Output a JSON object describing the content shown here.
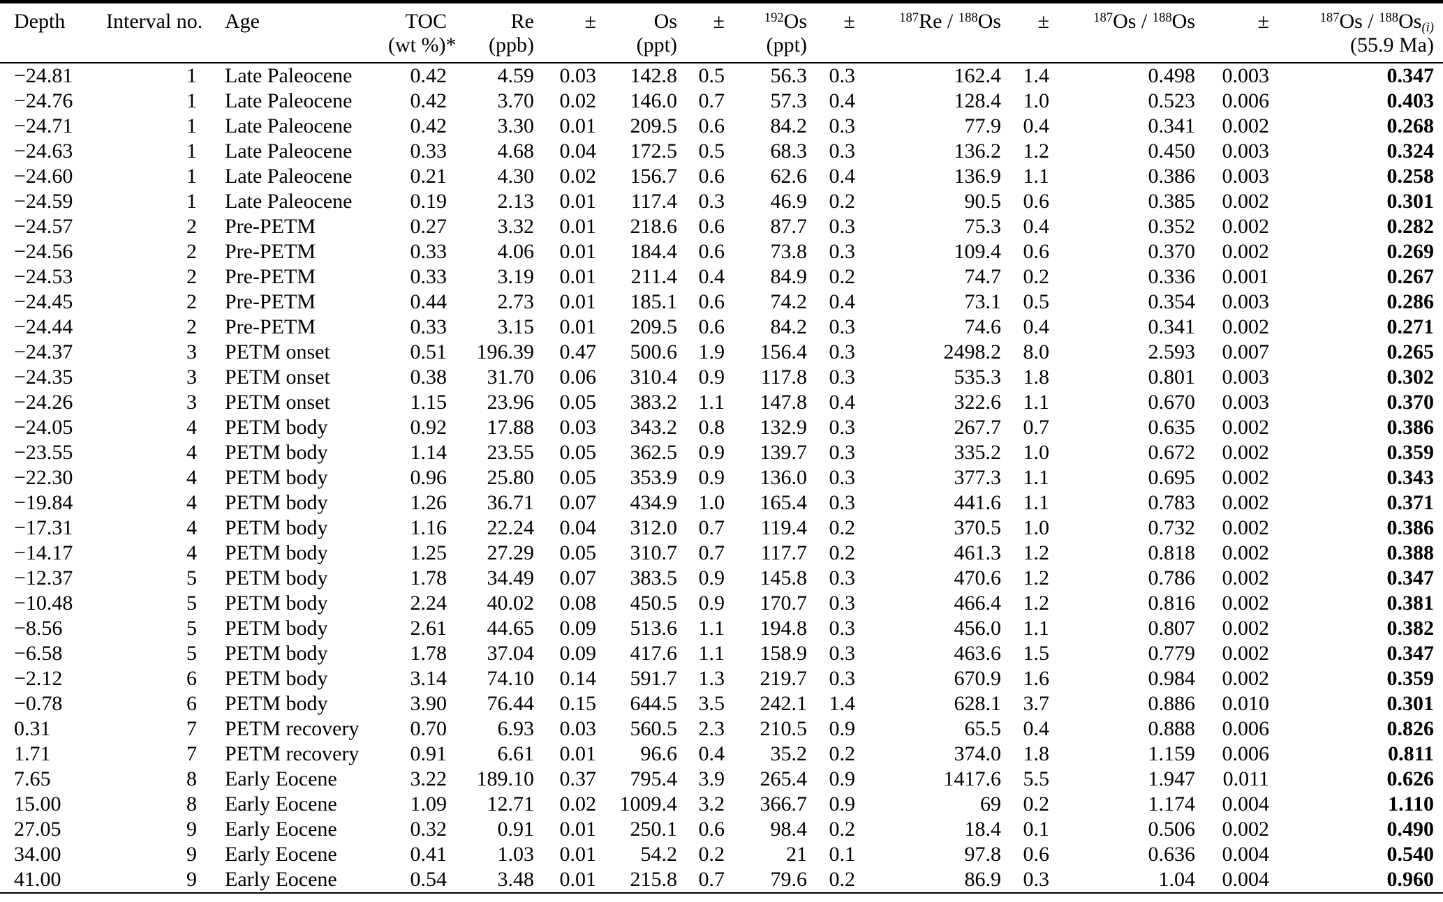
{
  "table": {
    "columns": [
      {
        "id": "depth",
        "line1": "Depth",
        "line2": "",
        "align": "left",
        "head_align": "left"
      },
      {
        "id": "interval-no",
        "line1": "Interval no.",
        "line2": "",
        "align": "right",
        "head_align": "left"
      },
      {
        "id": "age",
        "line1": "Age",
        "line2": "",
        "align": "left",
        "head_align": "left"
      },
      {
        "id": "toc",
        "line1": "TOC",
        "line2": "(wt %)*",
        "align": "right",
        "head_align": "right"
      },
      {
        "id": "re-ppb",
        "line1": "Re",
        "line2": "(ppb)",
        "align": "right",
        "head_align": "right"
      },
      {
        "id": "re-uncertainty",
        "line1": "±",
        "line2": "",
        "align": "right",
        "head_align": "right"
      },
      {
        "id": "os-ppt",
        "line1": "Os",
        "line2": "(ppt)",
        "align": "right",
        "head_align": "right"
      },
      {
        "id": "os-uncertainty",
        "line1": "±",
        "line2": "",
        "align": "right",
        "head_align": "right"
      },
      {
        "id": "os192-ppt",
        "line1": "^{192}Os",
        "line2": "(ppt)",
        "align": "right",
        "head_align": "right"
      },
      {
        "id": "os192-uncertainty",
        "line1": "±",
        "line2": "",
        "align": "right",
        "head_align": "right"
      },
      {
        "id": "re187-os188",
        "line1": "^{187}Re / ^{188}Os",
        "line2": "",
        "align": "right",
        "head_align": "right"
      },
      {
        "id": "re187-uncertainty",
        "line1": "±",
        "line2": "",
        "align": "right",
        "head_align": "right"
      },
      {
        "id": "os187-os188",
        "line1": "^{187}Os / ^{188}Os",
        "line2": "",
        "align": "right",
        "head_align": "right"
      },
      {
        "id": "os187-uncertainty",
        "line1": "±",
        "line2": "",
        "align": "right",
        "head_align": "right"
      },
      {
        "id": "os187-os188-initial",
        "line1": "^{187}Os / ^{188}Os_{(i)}",
        "line2": "(55.9 Ma)",
        "align": "right",
        "head_align": "right",
        "bold": true
      }
    ],
    "rows": [
      [
        "−24.81",
        "1",
        "Late Paleocene",
        "0.42",
        "4.59",
        "0.03",
        "142.8",
        "0.5",
        "56.3",
        "0.3",
        "162.4",
        "1.4",
        "0.498",
        "0.003",
        "0.347"
      ],
      [
        "−24.76",
        "1",
        "Late Paleocene",
        "0.42",
        "3.70",
        "0.02",
        "146.0",
        "0.7",
        "57.3",
        "0.4",
        "128.4",
        "1.0",
        "0.523",
        "0.006",
        "0.403"
      ],
      [
        "−24.71",
        "1",
        "Late Paleocene",
        "0.42",
        "3.30",
        "0.01",
        "209.5",
        "0.6",
        "84.2",
        "0.3",
        "77.9",
        "0.4",
        "0.341",
        "0.002",
        "0.268"
      ],
      [
        "−24.63",
        "1",
        "Late Paleocene",
        "0.33",
        "4.68",
        "0.04",
        "172.5",
        "0.5",
        "68.3",
        "0.3",
        "136.2",
        "1.2",
        "0.450",
        "0.003",
        "0.324"
      ],
      [
        "−24.60",
        "1",
        "Late Paleocene",
        "0.21",
        "4.30",
        "0.02",
        "156.7",
        "0.6",
        "62.6",
        "0.4",
        "136.9",
        "1.1",
        "0.386",
        "0.003",
        "0.258"
      ],
      [
        "−24.59",
        "1",
        "Late Paleocene",
        "0.19",
        "2.13",
        "0.01",
        "117.4",
        "0.3",
        "46.9",
        "0.2",
        "90.5",
        "0.6",
        "0.385",
        "0.002",
        "0.301"
      ],
      [
        "−24.57",
        "2",
        "Pre-PETM",
        "0.27",
        "3.32",
        "0.01",
        "218.6",
        "0.6",
        "87.7",
        "0.3",
        "75.3",
        "0.4",
        "0.352",
        "0.002",
        "0.282"
      ],
      [
        "−24.56",
        "2",
        "Pre-PETM",
        "0.33",
        "4.06",
        "0.01",
        "184.4",
        "0.6",
        "73.8",
        "0.3",
        "109.4",
        "0.6",
        "0.370",
        "0.002",
        "0.269"
      ],
      [
        "−24.53",
        "2",
        "Pre-PETM",
        "0.33",
        "3.19",
        "0.01",
        "211.4",
        "0.4",
        "84.9",
        "0.2",
        "74.7",
        "0.2",
        "0.336",
        "0.001",
        "0.267"
      ],
      [
        "−24.45",
        "2",
        "Pre-PETM",
        "0.44",
        "2.73",
        "0.01",
        "185.1",
        "0.6",
        "74.2",
        "0.4",
        "73.1",
        "0.5",
        "0.354",
        "0.003",
        "0.286"
      ],
      [
        "−24.44",
        "2",
        "Pre-PETM",
        "0.33",
        "3.15",
        "0.01",
        "209.5",
        "0.6",
        "84.2",
        "0.3",
        "74.6",
        "0.4",
        "0.341",
        "0.002",
        "0.271"
      ],
      [
        "−24.37",
        "3",
        "PETM onset",
        "0.51",
        "196.39",
        "0.47",
        "500.6",
        "1.9",
        "156.4",
        "0.3",
        "2498.2",
        "8.0",
        "2.593",
        "0.007",
        "0.265"
      ],
      [
        "−24.35",
        "3",
        "PETM onset",
        "0.38",
        "31.70",
        "0.06",
        "310.4",
        "0.9",
        "117.8",
        "0.3",
        "535.3",
        "1.8",
        "0.801",
        "0.003",
        "0.302"
      ],
      [
        "−24.26",
        "3",
        "PETM onset",
        "1.15",
        "23.96",
        "0.05",
        "383.2",
        "1.1",
        "147.8",
        "0.4",
        "322.6",
        "1.1",
        "0.670",
        "0.003",
        "0.370"
      ],
      [
        "−24.05",
        "4",
        "PETM body",
        "0.92",
        "17.88",
        "0.03",
        "343.2",
        "0.8",
        "132.9",
        "0.3",
        "267.7",
        "0.7",
        "0.635",
        "0.002",
        "0.386"
      ],
      [
        "−23.55",
        "4",
        "PETM body",
        "1.14",
        "23.55",
        "0.05",
        "362.5",
        "0.9",
        "139.7",
        "0.3",
        "335.2",
        "1.0",
        "0.672",
        "0.002",
        "0.359"
      ],
      [
        "−22.30",
        "4",
        "PETM body",
        "0.96",
        "25.80",
        "0.05",
        "353.9",
        "0.9",
        "136.0",
        "0.3",
        "377.3",
        "1.1",
        "0.695",
        "0.002",
        "0.343"
      ],
      [
        "−19.84",
        "4",
        "PETM body",
        "1.26",
        "36.71",
        "0.07",
        "434.9",
        "1.0",
        "165.4",
        "0.3",
        "441.6",
        "1.1",
        "0.783",
        "0.002",
        "0.371"
      ],
      [
        "−17.31",
        "4",
        "PETM body",
        "1.16",
        "22.24",
        "0.04",
        "312.0",
        "0.7",
        "119.4",
        "0.2",
        "370.5",
        "1.0",
        "0.732",
        "0.002",
        "0.386"
      ],
      [
        "−14.17",
        "4",
        "PETM body",
        "1.25",
        "27.29",
        "0.05",
        "310.7",
        "0.7",
        "117.7",
        "0.2",
        "461.3",
        "1.2",
        "0.818",
        "0.002",
        "0.388"
      ],
      [
        "−12.37",
        "5",
        "PETM body",
        "1.78",
        "34.49",
        "0.07",
        "383.5",
        "0.9",
        "145.8",
        "0.3",
        "470.6",
        "1.2",
        "0.786",
        "0.002",
        "0.347"
      ],
      [
        "−10.48",
        "5",
        "PETM body",
        "2.24",
        "40.02",
        "0.08",
        "450.5",
        "0.9",
        "170.7",
        "0.3",
        "466.4",
        "1.2",
        "0.816",
        "0.002",
        "0.381"
      ],
      [
        "−8.56",
        "5",
        "PETM body",
        "2.61",
        "44.65",
        "0.09",
        "513.6",
        "1.1",
        "194.8",
        "0.3",
        "456.0",
        "1.1",
        "0.807",
        "0.002",
        "0.382"
      ],
      [
        "−6.58",
        "5",
        "PETM body",
        "1.78",
        "37.04",
        "0.09",
        "417.6",
        "1.1",
        "158.9",
        "0.3",
        "463.6",
        "1.5",
        "0.779",
        "0.002",
        "0.347"
      ],
      [
        "−2.12",
        "6",
        "PETM body",
        "3.14",
        "74.10",
        "0.14",
        "591.7",
        "1.3",
        "219.7",
        "0.3",
        "670.9",
        "1.6",
        "0.984",
        "0.002",
        "0.359"
      ],
      [
        "−0.78",
        "6",
        "PETM body",
        "3.90",
        "76.44",
        "0.15",
        "644.5",
        "3.5",
        "242.1",
        "1.4",
        "628.1",
        "3.7",
        "0.886",
        "0.010",
        "0.301"
      ],
      [
        "0.31",
        "7",
        "PETM recovery",
        "0.70",
        "6.93",
        "0.03",
        "560.5",
        "2.3",
        "210.5",
        "0.9",
        "65.5",
        "0.4",
        "0.888",
        "0.006",
        "0.826"
      ],
      [
        "1.71",
        "7",
        "PETM recovery",
        "0.91",
        "6.61",
        "0.01",
        "96.6",
        "0.4",
        "35.2",
        "0.2",
        "374.0",
        "1.8",
        "1.159",
        "0.006",
        "0.811"
      ],
      [
        "7.65",
        "8",
        "Early Eocene",
        "3.22",
        "189.10",
        "0.37",
        "795.4",
        "3.9",
        "265.4",
        "0.9",
        "1417.6",
        "5.5",
        "1.947",
        "0.011",
        "0.626"
      ],
      [
        "15.00",
        "8",
        "Early Eocene",
        "1.09",
        "12.71",
        "0.02",
        "1009.4",
        "3.2",
        "366.7",
        "0.9",
        "69",
        "0.2",
        "1.174",
        "0.004",
        "1.110"
      ],
      [
        "27.05",
        "9",
        "Early Eocene",
        "0.32",
        "0.91",
        "0.01",
        "250.1",
        "0.6",
        "98.4",
        "0.2",
        "18.4",
        "0.1",
        "0.506",
        "0.002",
        "0.490"
      ],
      [
        "34.00",
        "9",
        "Early Eocene",
        "0.41",
        "1.03",
        "0.01",
        "54.2",
        "0.2",
        "21",
        "0.1",
        "97.8",
        "0.6",
        "0.636",
        "0.004",
        "0.540"
      ],
      [
        "41.00",
        "9",
        "Early Eocene",
        "0.54",
        "3.48",
        "0.01",
        "215.8",
        "0.7",
        "79.6",
        "0.2",
        "86.9",
        "0.3",
        "1.04",
        "0.004",
        "0.960"
      ]
    ]
  }
}
